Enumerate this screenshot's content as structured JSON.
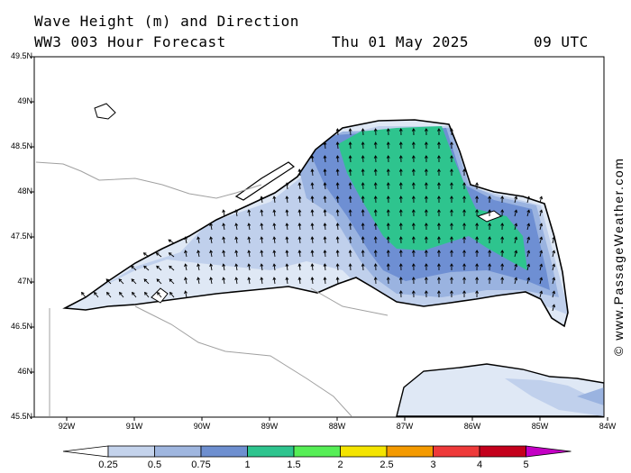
{
  "header": {
    "title_line1": "Wave Height (m) and Direction",
    "model_label": "WW3 003 Hour Forecast",
    "date": "Thu 01 May 2025",
    "time": "09 UTC"
  },
  "credit": "© www.PassageWeather.com",
  "axes": {
    "lat_labels": [
      "49.5N",
      "49N",
      "48.5N",
      "48N",
      "47.5N",
      "47N",
      "46.5N",
      "46N",
      "45.5N"
    ],
    "lon_labels": [
      "92W",
      "91W",
      "90W",
      "89W",
      "88W",
      "87W",
      "86W",
      "85W",
      "84W"
    ]
  },
  "colorbar": {
    "labels": [
      "0.25",
      "0.5",
      "0.75",
      "1",
      "1.5",
      "2",
      "2.5",
      "3",
      "4",
      "5"
    ],
    "colors": [
      "#e8eef8",
      "#c4d3ec",
      "#9fb6df",
      "#6e8fd0",
      "#2ec48e",
      "#56ee56",
      "#f4e400",
      "#f49a00",
      "#ee3a3a",
      "#c4001c",
      "#c400c4"
    ]
  },
  "map_colors": {
    "land": "#ffffff",
    "water_025": "#dfe8f5",
    "water_05": "#c0d0ec",
    "water_075": "#9ab3e0",
    "water_1": "#6e8fd3",
    "water_15": "#2ec48e",
    "border": "#a0a0a0"
  }
}
